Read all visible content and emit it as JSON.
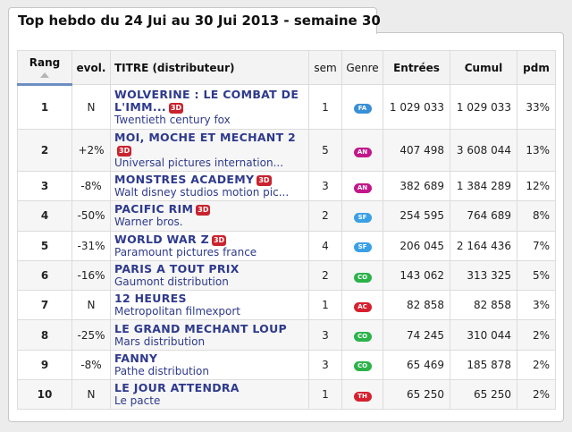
{
  "header": {
    "title": "Top hebdo du 24 Jui au 30 Jui 2013 - semaine 30"
  },
  "table": {
    "columns": {
      "rang": "Rang",
      "evol": "evol.",
      "titre": "TITRE (distributeur)",
      "sem": "sem",
      "genre": "Genre",
      "entrees": "Entrées",
      "cumul": "Cumul",
      "pdm": "pdm"
    },
    "rows": [
      {
        "rang": "1",
        "evol": "N",
        "title_line1": "WOLVERINE : LE COMBAT DE",
        "title_line2": "L'IMM...",
        "badge": "3D",
        "distributor": "Twentieth century fox",
        "sem": "1",
        "genre": "FA",
        "genre_color": "#3a8fd6",
        "entrees": "1 029 033",
        "cumul": "1 029 033",
        "pdm": "33%"
      },
      {
        "rang": "2",
        "evol": "+2%",
        "title_line1": "MOI, MOCHE ET MECHANT 2",
        "title_line2": "",
        "badge": "3D",
        "distributor": "Universal pictures internation...",
        "sem": "5",
        "genre": "AN",
        "genre_color": "#c2178a",
        "entrees": "407 498",
        "cumul": "3 608 044",
        "pdm": "13%"
      },
      {
        "rang": "3",
        "evol": "-8%",
        "title_line1": "MONSTRES ACADEMY",
        "title_line2": "",
        "badge": "3D",
        "distributor": "Walt disney studios motion pic...",
        "sem": "3",
        "genre": "AN",
        "genre_color": "#c2178a",
        "entrees": "382 689",
        "cumul": "1 384 289",
        "pdm": "12%"
      },
      {
        "rang": "4",
        "evol": "-50%",
        "title_line1": "PACIFIC RIM",
        "title_line2": "",
        "badge": "3D",
        "distributor": "Warner bros.",
        "sem": "2",
        "genre": "SF",
        "genre_color": "#3aa0e6",
        "entrees": "254 595",
        "cumul": "764 689",
        "pdm": "8%"
      },
      {
        "rang": "5",
        "evol": "-31%",
        "title_line1": "WORLD WAR Z",
        "title_line2": "",
        "badge": "3D",
        "distributor": "Paramount pictures france",
        "sem": "4",
        "genre": "SF",
        "genre_color": "#3aa0e6",
        "entrees": "206 045",
        "cumul": "2 164 436",
        "pdm": "7%"
      },
      {
        "rang": "6",
        "evol": "-16%",
        "title_line1": "PARIS A TOUT PRIX",
        "title_line2": "",
        "badge": "",
        "distributor": "Gaumont distribution",
        "sem": "2",
        "genre": "CO",
        "genre_color": "#2bb34a",
        "entrees": "143 062",
        "cumul": "313 325",
        "pdm": "5%"
      },
      {
        "rang": "7",
        "evol": "N",
        "title_line1": "12 HEURES",
        "title_line2": "",
        "badge": "",
        "distributor": "Metropolitan filmexport",
        "sem": "1",
        "genre": "AC",
        "genre_color": "#d6202f",
        "entrees": "82 858",
        "cumul": "82 858",
        "pdm": "3%"
      },
      {
        "rang": "8",
        "evol": "-25%",
        "title_line1": "LE GRAND MECHANT LOUP",
        "title_line2": "",
        "badge": "",
        "distributor": "Mars distribution",
        "sem": "3",
        "genre": "CO",
        "genre_color": "#2bb34a",
        "entrees": "74 245",
        "cumul": "310 044",
        "pdm": "2%"
      },
      {
        "rang": "9",
        "evol": "-8%",
        "title_line1": "FANNY",
        "title_line2": "",
        "badge": "",
        "distributor": "Pathe distribution",
        "sem": "3",
        "genre": "CO",
        "genre_color": "#2bb34a",
        "entrees": "65 469",
        "cumul": "185 878",
        "pdm": "2%"
      },
      {
        "rang": "10",
        "evol": "N",
        "title_line1": "LE JOUR ATTENDRA",
        "title_line2": "",
        "badge": "",
        "distributor": "Le pacte",
        "sem": "1",
        "genre": "TH",
        "genre_color": "#d6202f",
        "entrees": "65 250",
        "cumul": "65 250",
        "pdm": "2%"
      }
    ]
  }
}
